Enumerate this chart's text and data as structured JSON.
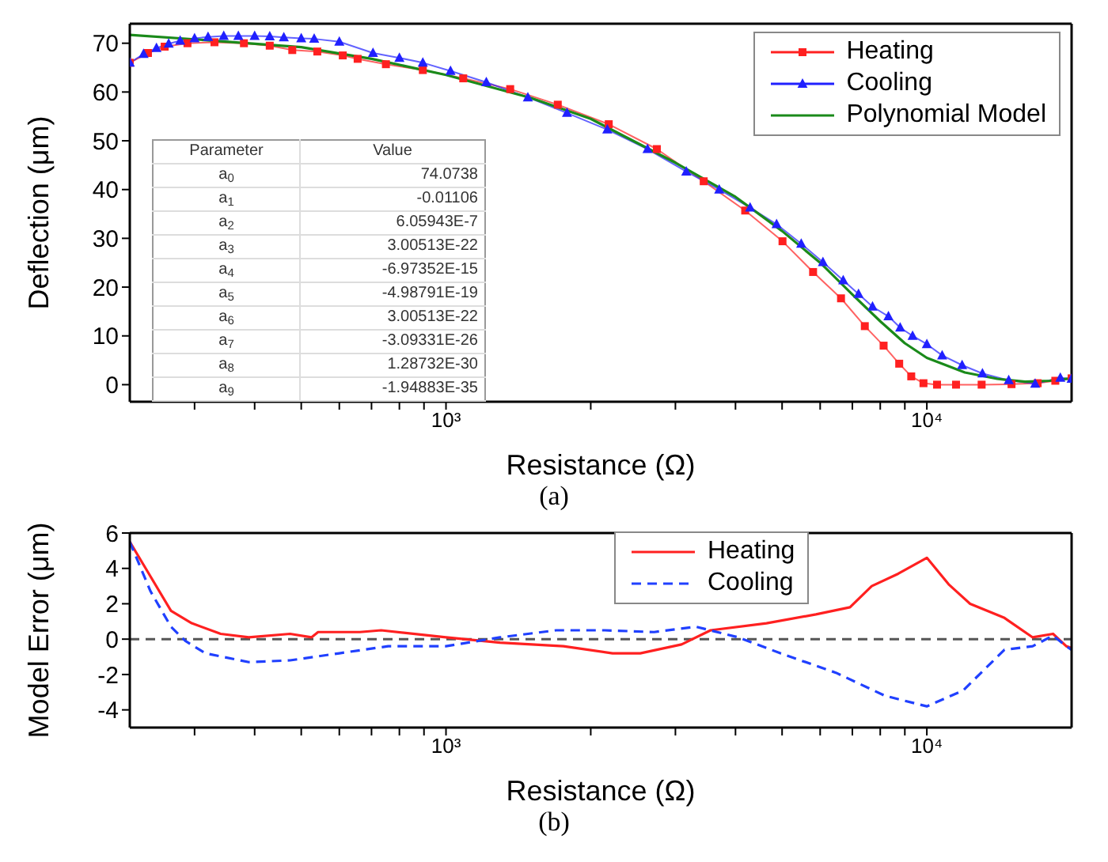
{
  "chart_data": [
    {
      "type": "line",
      "xlabel": "Resistance (Ω)",
      "ylabel": "Deflection (μm)",
      "log": "x",
      "xlim": [
        220,
        20000
      ],
      "ylim": [
        -3.5,
        74
      ],
      "xticks": [
        {
          "value": 300,
          "label": null
        },
        {
          "value": 400,
          "label": null
        },
        {
          "value": 500,
          "label": null
        },
        {
          "value": 600,
          "label": null
        },
        {
          "value": 700,
          "label": null
        },
        {
          "value": 800,
          "label": null
        },
        {
          "value": 900,
          "label": null
        },
        {
          "value": 1000,
          "label": "10³"
        },
        {
          "value": 2000,
          "label": null
        },
        {
          "value": 3000,
          "label": null
        },
        {
          "value": 4000,
          "label": null
        },
        {
          "value": 5000,
          "label": null
        },
        {
          "value": 6000,
          "label": null
        },
        {
          "value": 7000,
          "label": null
        },
        {
          "value": 8000,
          "label": null
        },
        {
          "value": 9000,
          "label": null
        },
        {
          "value": 10000,
          "label": "10⁴"
        }
      ],
      "yticks": [
        0,
        10,
        20,
        30,
        40,
        50,
        60,
        70
      ],
      "legend": "top right",
      "series": [
        {
          "name": "Heating",
          "color": "#ff2020",
          "marker": "square",
          "x": [
            220,
            240,
            260,
            290,
            330,
            380,
            430,
            479,
            540,
            610,
            655,
            750,
            895,
            1086,
            1360,
            1708,
            2180,
            2745,
            3435,
            4190,
            5010,
            5800,
            6630,
            7430,
            8130,
            8760,
            9280,
            9840,
            10500,
            11500,
            13000,
            15000,
            17000,
            18500,
            20000
          ],
          "values": [
            66,
            68,
            69.3,
            70,
            70.2,
            70,
            69.5,
            68.6,
            68.3,
            67.5,
            66.8,
            65.7,
            64.5,
            62.8,
            60.6,
            57.4,
            53.4,
            48.3,
            41.7,
            35.7,
            29.4,
            23.1,
            17.7,
            12,
            8,
            4.3,
            1.7,
            0.3,
            0,
            0,
            0,
            0.1,
            0.3,
            0.8,
            1.3
          ]
        },
        {
          "name": "Cooling",
          "color": "#2020ff",
          "marker": "triangle",
          "x": [
            220,
            235,
            250,
            265,
            280,
            300,
            320,
            345,
            370,
            400,
            430,
            460,
            500,
            532,
            600,
            705,
            800,
            895,
            1022,
            1213,
            1480,
            1785,
            2165,
            2625,
            3160,
            3700,
            4290,
            4870,
            5480,
            6080,
            6700,
            7210,
            7710,
            8320,
            8800,
            9340,
            10000,
            10760,
            11840,
            13050,
            14800,
            16800,
            18950,
            20000
          ],
          "values": [
            66,
            67.8,
            69,
            69.9,
            70.5,
            71,
            71.3,
            71.5,
            71.5,
            71.5,
            71.4,
            71.2,
            71,
            70.9,
            70.3,
            68,
            67,
            66,
            64.3,
            62,
            58.9,
            55.7,
            52.3,
            48.3,
            43.7,
            40,
            36.3,
            32.9,
            28.9,
            25.1,
            21.4,
            18.6,
            16,
            14,
            11.7,
            10,
            8.3,
            6,
            4,
            2.3,
            0.9,
            0.2,
            1.4,
            1.2
          ]
        },
        {
          "name": "Polynomial Model",
          "color": "#1a8a1a",
          "marker": "none",
          "x": [
            220,
            300,
            500,
            700,
            1000,
            1500,
            2000,
            3000,
            4000,
            5000,
            6000,
            7000,
            8000,
            9000,
            10000,
            12000,
            14000,
            16000,
            18000,
            20000
          ],
          "values": [
            71.7,
            70.8,
            69.2,
            66.8,
            63.5,
            58.8,
            54.5,
            45.5,
            38.5,
            31.5,
            25,
            18.5,
            13,
            8.5,
            5.5,
            2.5,
            1.2,
            0.6,
            0.8,
            1.3
          ]
        }
      ],
      "annotations": [
        "(a)",
        "Parameter",
        "Value",
        "a$_{0}$",
        "74.0738",
        "a$_{1}$",
        "-0.01106",
        "a$_{2}$",
        "6.05943E-7",
        "a$_{3}$",
        "3.00513E-22",
        "a$_{4}$",
        "-6.97352E-15",
        "a$_{5}$",
        "-4.98791E-19",
        "a$_{6}$",
        "3.00513E-22",
        "a$_{7}$",
        "-3.09331E-26",
        "a$_{8}$",
        "1.28732E-30",
        "a$_{9}$",
        "-1.94883E-35"
      ]
    },
    {
      "type": "line",
      "xlabel": "Resistance (Ω)",
      "ylabel": "Model Error (μm)",
      "log": "x",
      "xlim": [
        220,
        20000
      ],
      "ylim": [
        -5,
        6
      ],
      "xticks": [
        {
          "value": 300,
          "label": null
        },
        {
          "value": 400,
          "label": null
        },
        {
          "value": 500,
          "label": null
        },
        {
          "value": 600,
          "label": null
        },
        {
          "value": 700,
          "label": null
        },
        {
          "value": 800,
          "label": null
        },
        {
          "value": 900,
          "label": null
        },
        {
          "value": 1000,
          "label": "10³"
        },
        {
          "value": 2000,
          "label": null
        },
        {
          "value": 3000,
          "label": null
        },
        {
          "value": 4000,
          "label": null
        },
        {
          "value": 5000,
          "label": null
        },
        {
          "value": 6000,
          "label": null
        },
        {
          "value": 7000,
          "label": null
        },
        {
          "value": 8000,
          "label": null
        },
        {
          "value": 9000,
          "label": null
        },
        {
          "value": 10000,
          "label": "10⁴"
        }
      ],
      "yticks": [
        -4,
        -2,
        0,
        2,
        4,
        6
      ],
      "legend": "top",
      "ref_lines": [
        {
          "axis": "y",
          "value": 0,
          "color": "#555555",
          "line_style": "dashed"
        }
      ],
      "series": [
        {
          "name": "Heating",
          "color": "#ff2020",
          "line_style": "solid",
          "x": [
            220,
            235,
            268,
            296,
            340,
            389,
            474,
            525,
            542,
            662,
            733,
            1000,
            1295,
            1755,
            2220,
            2535,
            3090,
            3550,
            4640,
            5880,
            6920,
            7680,
            8720,
            10000,
            11100,
            12300,
            14500,
            16600,
            18300,
            19500,
            20000
          ],
          "values": [
            5.5,
            4.2,
            1.6,
            0.9,
            0.3,
            0.1,
            0.3,
            0.1,
            0.4,
            0.4,
            0.5,
            0.1,
            -0.2,
            -0.4,
            -0.8,
            -0.8,
            -0.3,
            0.5,
            0.9,
            1.4,
            1.8,
            3,
            3.7,
            4.6,
            3.1,
            2,
            1.2,
            0.1,
            0.3,
            -0.4,
            -0.5
          ]
        },
        {
          "name": "Cooling",
          "color": "#2040ff",
          "line_style": "dashed",
          "x": [
            220,
            243,
            268,
            287,
            316,
            389,
            474,
            600,
            758,
            1000,
            1295,
            1695,
            2140,
            2710,
            3310,
            4060,
            4960,
            6470,
            8180,
            10000,
            11900,
            14500,
            16600,
            18300,
            19500,
            20000
          ],
          "values": [
            5.5,
            2.7,
            0.7,
            -0.1,
            -0.8,
            -1.3,
            -1.2,
            -0.8,
            -0.4,
            -0.4,
            0.1,
            0.5,
            0.5,
            0.4,
            0.7,
            0.1,
            -0.8,
            -1.9,
            -3.2,
            -3.8,
            -2.9,
            -0.6,
            -0.4,
            0.2,
            -0.4,
            -0.6
          ]
        }
      ],
      "annotations": [
        "(b)"
      ]
    }
  ]
}
